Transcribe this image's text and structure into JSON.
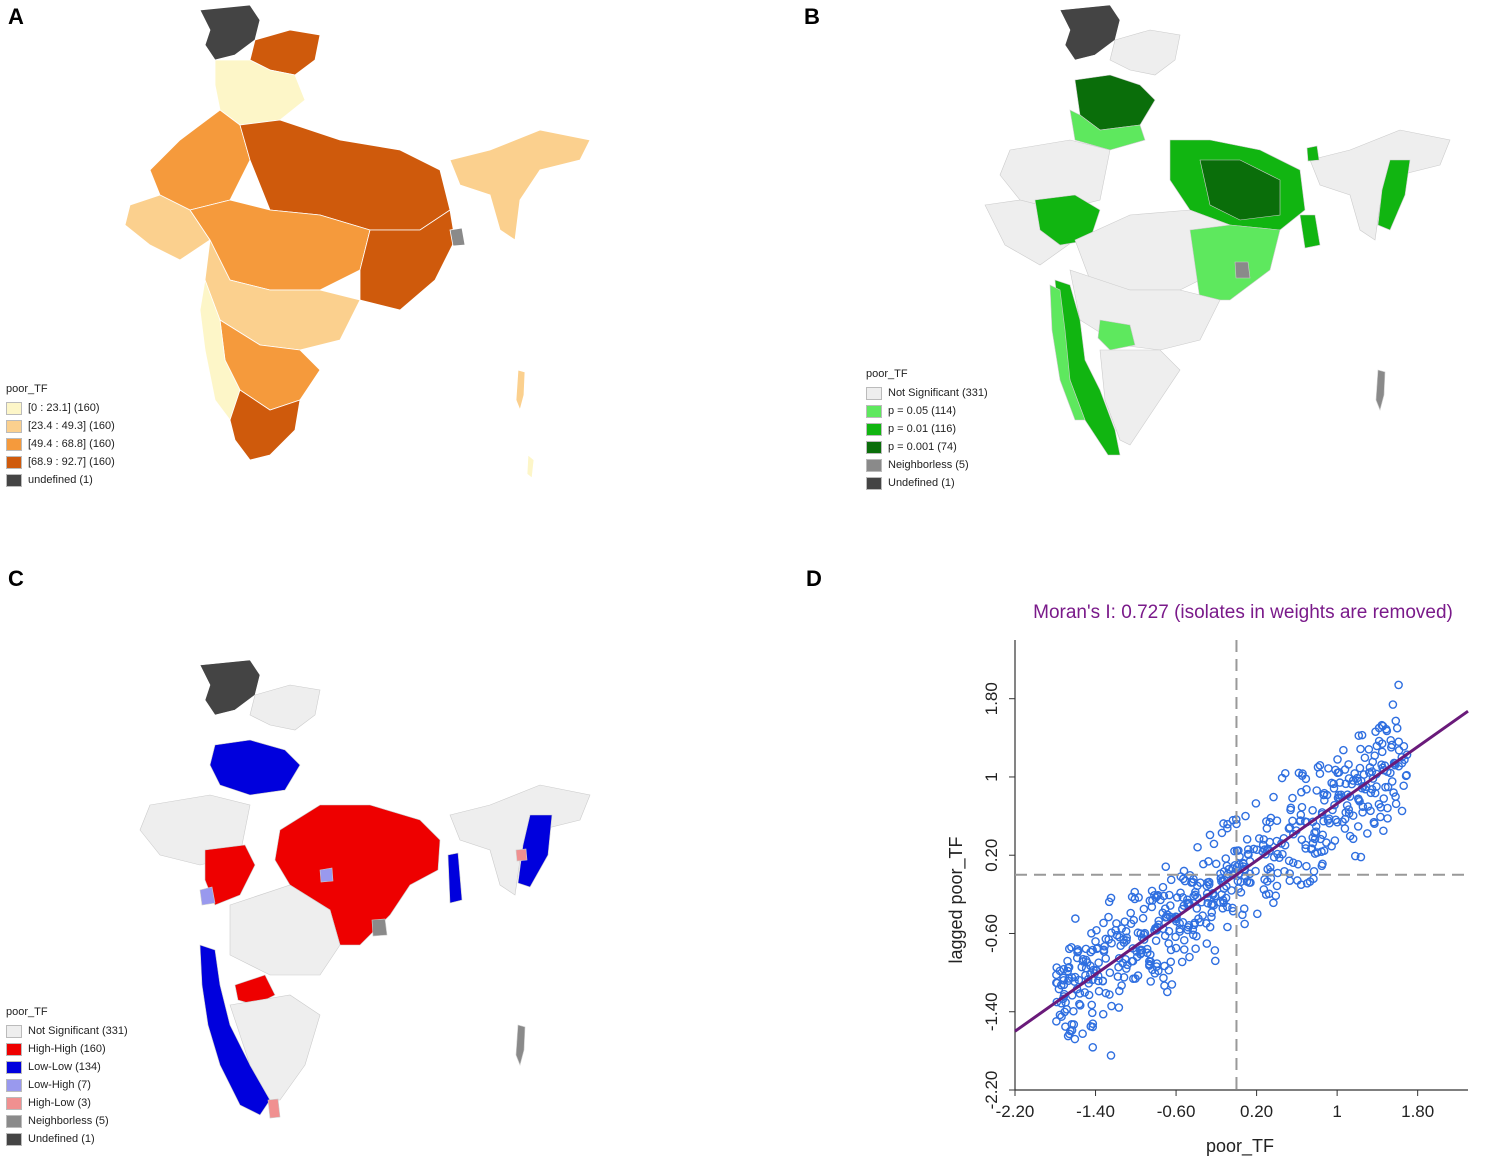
{
  "panels": {
    "a": {
      "letter": "A",
      "legend": {
        "title": "poor_TF",
        "items": [
          {
            "label": "[0 : 23.1] (160)",
            "color": "#fdf6c8"
          },
          {
            "label": "[23.4 : 49.3] (160)",
            "color": "#fbd08e"
          },
          {
            "label": "[49.4 : 68.8] (160)",
            "color": "#f59a3c"
          },
          {
            "label": "[68.9 : 92.7] (160)",
            "color": "#cf5a0c"
          },
          {
            "label": "undefined (1)",
            "color": "#444444"
          }
        ]
      }
    },
    "b": {
      "letter": "B",
      "legend": {
        "title": "poor_TF",
        "items": [
          {
            "label": "Not Significant (331)",
            "color": "#eeeeee"
          },
          {
            "label": "p = 0.05 (114)",
            "color": "#5ee85e"
          },
          {
            "label": "p = 0.01 (116)",
            "color": "#11b511"
          },
          {
            "label": "p = 0.001 (74)",
            "color": "#0a6e0a"
          },
          {
            "label": "Neighborless (5)",
            "color": "#8a8a8a"
          },
          {
            "label": "Undefined (1)",
            "color": "#444444"
          }
        ]
      }
    },
    "c": {
      "letter": "C",
      "legend": {
        "title": "poor_TF",
        "items": [
          {
            "label": "Not Significant (331)",
            "color": "#eeeeee"
          },
          {
            "label": "High-High (160)",
            "color": "#ee0000"
          },
          {
            "label": "Low-Low (134)",
            "color": "#0000dd"
          },
          {
            "label": "Low-High (7)",
            "color": "#9999ee"
          },
          {
            "label": "High-Low (3)",
            "color": "#f09090"
          },
          {
            "label": "Neighborless (5)",
            "color": "#8a8a8a"
          },
          {
            "label": "Undefined (1)",
            "color": "#444444"
          }
        ]
      }
    },
    "d": {
      "letter": "D"
    }
  },
  "chart_data": {
    "type": "scatter",
    "title": "Moran's I: 0.727 (isolates in weights are removed)",
    "title_color": "#7a1a8a",
    "xlabel": "poor_TF",
    "ylabel": "lagged poor_TF",
    "xlim": [
      -2.2,
      2.3
    ],
    "ylim": [
      -2.2,
      2.4
    ],
    "xticks": [
      -2.2,
      -1.4,
      -0.6,
      0.2,
      1,
      1.8
    ],
    "xtick_labels": [
      "-2.20",
      "-1.40",
      "-0.60",
      "0.20",
      "1",
      "1.80"
    ],
    "yticks": [
      -2.2,
      -1.4,
      -0.6,
      0.2,
      1,
      1.8
    ],
    "ytick_labels": [
      "-2.20",
      "-1.40",
      "-0.60",
      "0.20",
      "1",
      "1.80"
    ],
    "mean_x": 0.0,
    "mean_y": 0.0,
    "regression": {
      "slope": 0.727,
      "intercept": 0.0,
      "color": "#6a1a7a"
    },
    "point_color": "#2f6fe0",
    "n_points": 600,
    "seed": 17
  }
}
